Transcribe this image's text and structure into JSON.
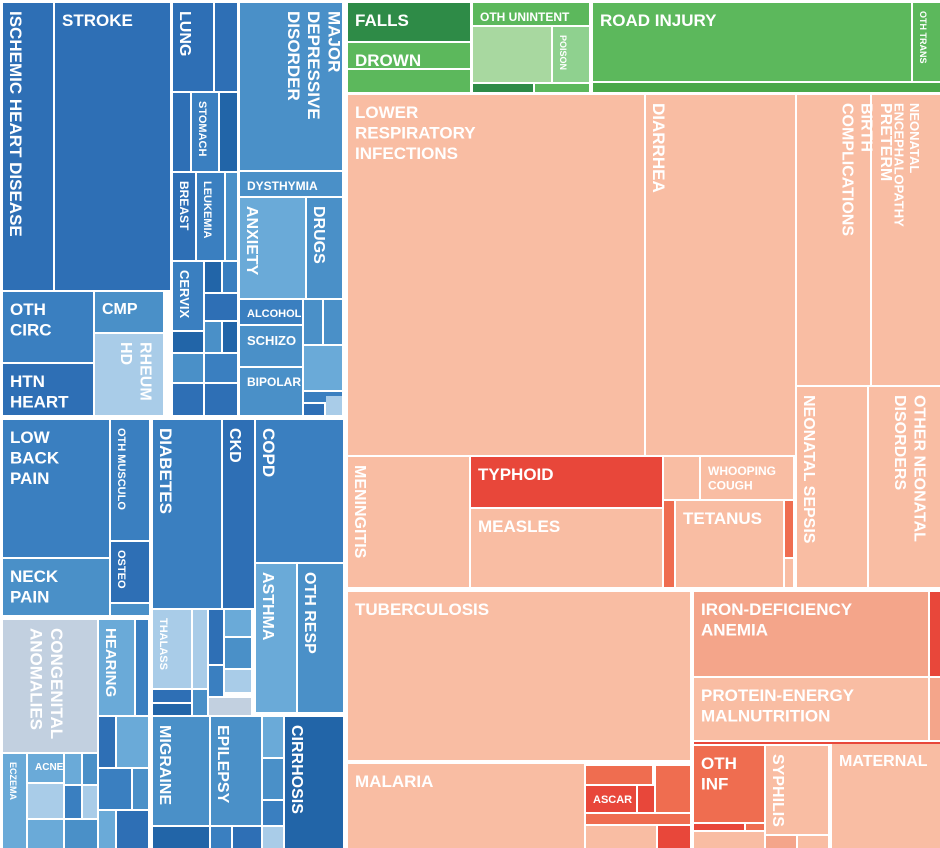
{
  "treemap": {
    "cells": [
      {
        "lines": [
          "ISCHEMIC HEART DISEASE"
        ]
      },
      {
        "lines": [
          "STROKE"
        ]
      },
      {
        "lines": [
          "OTH",
          "CIRC"
        ]
      },
      {
        "lines": [
          "HTN",
          "HEART"
        ]
      },
      {
        "lines": [
          "CMP"
        ]
      },
      {
        "lines": [
          "RHEUM",
          "HD"
        ]
      },
      {
        "lines": [
          "LUNG"
        ]
      },
      {
        "lines": [
          "STOMACH"
        ]
      },
      {
        "lines": [
          "BREAST"
        ]
      },
      {
        "lines": [
          "LEUKEMIA"
        ]
      },
      {
        "lines": [
          "CERVIX"
        ]
      },
      {
        "lines": [
          "MAJOR",
          "DEPRESSIVE",
          "DISORDER"
        ]
      },
      {
        "lines": [
          "DYSTHYMIA"
        ]
      },
      {
        "lines": [
          "ANXIETY"
        ]
      },
      {
        "lines": [
          "DRUGS"
        ]
      },
      {
        "lines": [
          "ALCOHOL"
        ]
      },
      {
        "lines": [
          "SCHIZO"
        ]
      },
      {
        "lines": [
          "BIPOLAR"
        ]
      },
      {
        "lines": [
          "LOW",
          "BACK",
          "PAIN"
        ]
      },
      {
        "lines": [
          "NECK",
          "PAIN"
        ]
      },
      {
        "lines": [
          "OTH MUSCULO"
        ]
      },
      {
        "lines": [
          "OSTEO"
        ]
      },
      {
        "lines": [
          "DIABETES"
        ]
      },
      {
        "lines": [
          "CKD"
        ]
      },
      {
        "lines": [
          "COPD"
        ]
      },
      {
        "lines": [
          "ASTHMA"
        ]
      },
      {
        "lines": [
          "OTH RESP"
        ]
      },
      {
        "lines": [
          "CONGENITAL",
          "ANOMALIES"
        ]
      },
      {
        "lines": [
          "HEARING"
        ]
      },
      {
        "lines": [
          "THALASS"
        ]
      },
      {
        "lines": [
          "ECZEMA"
        ]
      },
      {
        "lines": [
          "ACNE"
        ]
      },
      {
        "lines": [
          "MIGRAINE"
        ]
      },
      {
        "lines": [
          "EPILEPSY"
        ]
      },
      {
        "lines": [
          "CIRRHOSIS"
        ]
      },
      {
        "lines": [
          "FALLS"
        ]
      },
      {
        "lines": [
          "DROWN"
        ]
      },
      {
        "lines": [
          "OTH UNINTENT"
        ]
      },
      {
        "lines": [
          "POISON"
        ]
      },
      {
        "lines": [
          "ROAD INJURY"
        ]
      },
      {
        "lines": [
          "OTH TRANS"
        ]
      },
      {
        "lines": [
          "LOWER",
          "RESPIRATORY",
          "INFECTIONS"
        ]
      },
      {
        "lines": [
          "DIARRHEA"
        ]
      },
      {
        "lines": [
          "PRETERM",
          "BIRTH",
          "COMPLICATIONS"
        ]
      },
      {
        "lines": [
          "NEONATAL",
          "ENCEPHALOPATHY"
        ]
      },
      {
        "lines": [
          "NEONATAL SEPSIS"
        ]
      },
      {
        "lines": [
          "OTHER NEONATAL",
          "DISORDERS"
        ]
      },
      {
        "lines": [
          "MENINGITIS"
        ]
      },
      {
        "lines": [
          "TYPHOID"
        ]
      },
      {
        "lines": [
          "MEASLES"
        ]
      },
      {
        "lines": [
          "WHOOPING",
          "COUGH"
        ]
      },
      {
        "lines": [
          "TETANUS"
        ]
      },
      {
        "lines": [
          "TUBERCULOSIS"
        ]
      },
      {
        "lines": [
          "IRON-DEFICIENCY",
          "ANEMIA"
        ]
      },
      {
        "lines": [
          "PROTEIN-ENERGY",
          "MALNUTRITION"
        ]
      },
      {
        "lines": [
          "MALARIA"
        ]
      },
      {
        "lines": [
          "ASCAR"
        ]
      },
      {
        "lines": [
          "OTH",
          "INF"
        ]
      },
      {
        "lines": [
          "SYPHILIS"
        ]
      },
      {
        "lines": [
          "MATERNAL"
        ]
      }
    ]
  }
}
